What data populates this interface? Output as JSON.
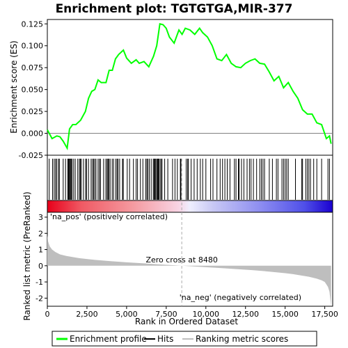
{
  "chart_data": {
    "type": "line",
    "title": "Enrichment plot: TGTGTGA,MIR-377",
    "xlabel": "Rank in Ordered Dataset",
    "es_ylabel": "Enrichment score (ES)",
    "metric_ylabel": "Ranked list metric (PreRanked)",
    "xlim": [
      0,
      18000
    ],
    "es_ylim": [
      -0.025,
      0.13
    ],
    "metric_ylim": [
      -2.5,
      3.3
    ],
    "x_ticks": [
      0,
      2500,
      5000,
      7500,
      10000,
      12500,
      15000,
      17500
    ],
    "x_tick_labels": [
      "0",
      "2,500",
      "5,000",
      "7,500",
      "10,000",
      "12,500",
      "15,000",
      "17,500"
    ],
    "es_ticks": [
      -0.025,
      0.0,
      0.025,
      0.05,
      0.075,
      0.1,
      0.125
    ],
    "es_tick_labels": [
      "-0.025",
      "0.000",
      "0.025",
      "0.050",
      "0.075",
      "0.100",
      "0.125"
    ],
    "metric_ticks": [
      -2,
      -1,
      0,
      1,
      2,
      3
    ],
    "metric_tick_labels": [
      "-2",
      "-1",
      "0",
      "1",
      "2",
      "3"
    ],
    "series": [
      {
        "name": "Enrichment profile",
        "color": "#00ff00",
        "x": [
          0,
          300,
          600,
          800,
          1000,
          1250,
          1400,
          1600,
          1800,
          2100,
          2400,
          2600,
          2800,
          3000,
          3200,
          3400,
          3700,
          3900,
          4100,
          4300,
          4500,
          4800,
          5000,
          5300,
          5600,
          5800,
          6100,
          6400,
          6700,
          6900,
          7100,
          7300,
          7500,
          7700,
          8000,
          8300,
          8500,
          8700,
          9000,
          9300,
          9600,
          9800,
          10100,
          10400,
          10700,
          11000,
          11300,
          11600,
          11900,
          12200,
          12500,
          12800,
          13100,
          13400,
          13700,
          14000,
          14300,
          14600,
          14900,
          15200,
          15500,
          15800,
          16100,
          16400,
          16700,
          17000,
          17300,
          17600,
          17800,
          17900
        ],
        "y": [
          0.004,
          -0.006,
          -0.003,
          -0.004,
          -0.009,
          -0.017,
          0.005,
          0.01,
          0.01,
          0.015,
          0.025,
          0.04,
          0.048,
          0.05,
          0.061,
          0.058,
          0.058,
          0.072,
          0.072,
          0.085,
          0.09,
          0.095,
          0.086,
          0.08,
          0.084,
          0.08,
          0.082,
          0.076,
          0.088,
          0.1,
          0.125,
          0.124,
          0.12,
          0.11,
          0.103,
          0.118,
          0.113,
          0.12,
          0.118,
          0.113,
          0.12,
          0.115,
          0.11,
          0.1,
          0.085,
          0.083,
          0.09,
          0.08,
          0.076,
          0.075,
          0.08,
          0.083,
          0.085,
          0.08,
          0.079,
          0.07,
          0.06,
          0.065,
          0.052,
          0.058,
          0.048,
          0.04,
          0.027,
          0.022,
          0.022,
          0.012,
          0.01,
          -0.006,
          -0.003,
          -0.012
        ]
      },
      {
        "name": "Ranking metric scores",
        "color": "#bebebe",
        "x": [
          0,
          50,
          150,
          300,
          500,
          800,
          1200,
          2000,
          3000,
          4000,
          5000,
          6000,
          7000,
          8000,
          8480,
          9000,
          10000,
          11000,
          12000,
          13000,
          14000,
          15000,
          15500,
          16000,
          16500,
          17000,
          17300,
          17500,
          17700,
          17800,
          17900
        ],
        "y": [
          1.9,
          1.5,
          1.2,
          1.0,
          0.85,
          0.7,
          0.6,
          0.47,
          0.36,
          0.28,
          0.21,
          0.15,
          0.09,
          0.03,
          0.0,
          -0.03,
          -0.09,
          -0.15,
          -0.21,
          -0.28,
          -0.36,
          -0.46,
          -0.52,
          -0.6,
          -0.68,
          -0.8,
          -0.9,
          -1.0,
          -1.3,
          -1.6,
          -2.5
        ]
      }
    ],
    "hits": [
      120,
      330,
      430,
      520,
      590,
      700,
      760,
      1000,
      1150,
      1290,
      1330,
      1370,
      1410,
      1460,
      1500,
      1560,
      1660,
      1760,
      1920,
      2020,
      2080,
      2140,
      2280,
      2420,
      2470,
      2600,
      2760,
      2850,
      2920,
      2990,
      3070,
      3200,
      3290,
      3350,
      3550,
      3690,
      3770,
      3830,
      3880,
      3960,
      4090,
      4180,
      4320,
      4400,
      4460,
      4560,
      4740,
      4790,
      5040,
      5190,
      5430,
      5600,
      5690,
      5870,
      6030,
      6200,
      6280,
      6340,
      6430,
      6550,
      6680,
      6740,
      6790,
      6840,
      6900,
      6960,
      7000,
      7040,
      7120,
      7200,
      7230,
      7400,
      7600,
      7900,
      8050,
      8200,
      8390,
      8430,
      8760,
      8850,
      8900,
      9070,
      9260,
      9450,
      9650,
      9800,
      10000,
      10300,
      10450,
      10700,
      10900,
      11050,
      11200,
      11350,
      11520,
      11800,
      11900,
      12050,
      12100,
      12250,
      12400,
      12600,
      12750,
      12850,
      13000,
      13200,
      13400,
      13500,
      13600,
      13700,
      14000,
      14200,
      14450,
      14550,
      14800,
      14900,
      15000,
      15100,
      15200,
      15650,
      16050,
      16100,
      16300,
      16400,
      16500,
      16600,
      16800,
      17000,
      17300,
      17700,
      17800
    ],
    "heat_labels": {
      "pos": "'na_pos' (positively correlated)",
      "neg": "'na_neg' (negatively correlated)"
    },
    "zero_cross": {
      "rank": 8480,
      "label": "Zero cross at 8480"
    },
    "legend": {
      "placement": "bottom",
      "items": [
        {
          "label": "Enrichment profile",
          "color": "#00ff00"
        },
        {
          "label": "Hits",
          "color": "#000000"
        },
        {
          "label": "Ranking metric scores",
          "color": "#bebebe"
        }
      ]
    },
    "colors": {
      "pos_label": "#cc0000",
      "neg_label": "#0000cc",
      "heat_red": "#ff0000",
      "heat_blue": "#0000ff"
    }
  }
}
